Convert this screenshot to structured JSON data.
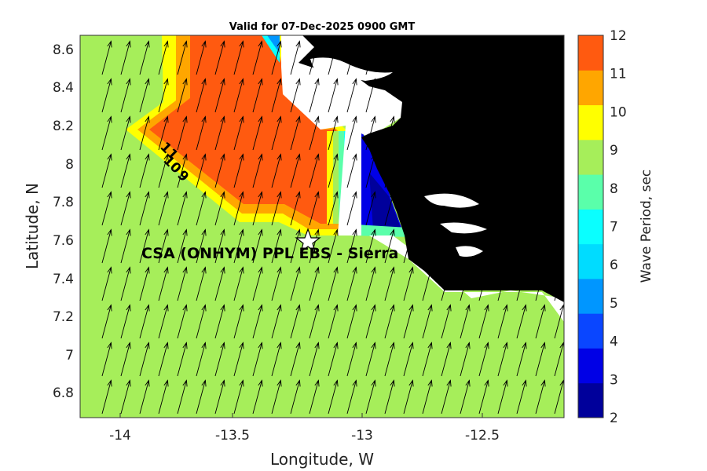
{
  "title": "Valid for 07-Dec-2025 0900 GMT",
  "site_label": "CSA (ONHYM) PPL EBS - Sierra",
  "contour_labels": [
    "11",
    "10",
    "9"
  ],
  "colors": {
    "land": "#000000",
    "coast_gap": "#ffffff",
    "p8_9": "#a6ee5a",
    "p9_10": "#ffff00",
    "p10_11": "#ffa600",
    "p11_12": "#ff5a10",
    "arrow": "#000000"
  },
  "chart_data": {
    "type": "heatmap",
    "title": "Valid for 07-Dec-2025 0900 GMT",
    "xlabel": "Longitude, W",
    "ylabel": "Latitude, N",
    "xlim": [
      -14.2,
      -12.2
    ],
    "ylim": [
      6.67,
      8.67
    ],
    "xticks": [
      -14,
      -13.5,
      -13,
      -12.5
    ],
    "yticks": [
      6.8,
      7,
      7.2,
      7.4,
      7.6,
      7.8,
      8,
      8.2,
      8.4,
      8.6
    ],
    "colorbar": {
      "label": "Wave Period, sec",
      "range": [
        2,
        12
      ],
      "ticks": [
        2,
        3,
        4,
        5,
        6,
        7,
        8,
        9,
        10,
        11,
        12
      ],
      "colors": [
        "#00009b",
        "#0000e6",
        "#0a46ff",
        "#0096ff",
        "#00dcff",
        "#0affff",
        "#5affaa",
        "#a6ee5a",
        "#ffff00",
        "#ffa600",
        "#ff5a10"
      ]
    },
    "marker": {
      "name": "CSA (ONHYM) PPL EBS - Sierra",
      "lon": -13.2,
      "lat": 7.6
    },
    "wave_direction_deg_towards": 15
  }
}
